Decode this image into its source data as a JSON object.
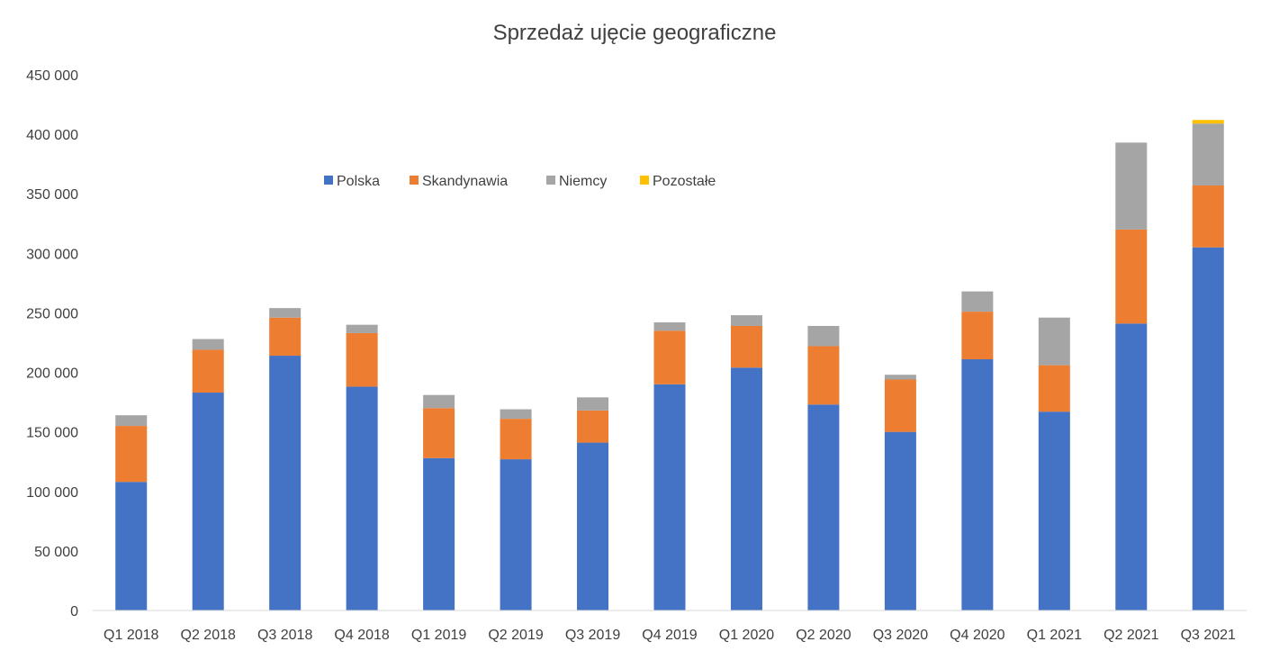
{
  "chart_data": {
    "type": "bar",
    "stacked": true,
    "title": "Sprzedaż ujęcie geograficzne",
    "xlabel": "",
    "ylabel": "",
    "ylim": [
      0,
      450000
    ],
    "y_ticks": [
      0,
      50000,
      100000,
      150000,
      200000,
      250000,
      300000,
      350000,
      400000,
      450000
    ],
    "y_tick_labels": [
      "0",
      "50 000",
      "100 000",
      "150 000",
      "200 000",
      "250 000",
      "300 000",
      "350 000",
      "400 000",
      "450 000"
    ],
    "grid": false,
    "legend_position": "top-center",
    "categories": [
      "Q1 2018",
      "Q2 2018",
      "Q3 2018",
      "Q4 2018",
      "Q1 2019",
      "Q2 2019",
      "Q3 2019",
      "Q4 2019",
      "Q1 2020",
      "Q2 2020",
      "Q3 2020",
      "Q4 2020",
      "Q1 2021",
      "Q2 2021",
      "Q3 2021"
    ],
    "series": [
      {
        "name": "Polska",
        "color": "#4472C4",
        "values": [
          108000,
          183000,
          214000,
          188000,
          128000,
          127000,
          141000,
          190000,
          204000,
          173000,
          150000,
          211000,
          167000,
          241000,
          305000
        ]
      },
      {
        "name": "Skandynawia",
        "color": "#ED7D31",
        "values": [
          47000,
          36000,
          32000,
          45000,
          42000,
          34000,
          27000,
          45000,
          35000,
          49000,
          44000,
          40000,
          39000,
          79000,
          52000
        ]
      },
      {
        "name": "Niemcy",
        "color": "#A5A5A5",
        "values": [
          9000,
          9000,
          8000,
          7000,
          11000,
          8000,
          11000,
          7000,
          9000,
          17000,
          4000,
          17000,
          40000,
          73000,
          52000
        ]
      },
      {
        "name": "Pozostałe",
        "color": "#FFC000",
        "values": [
          0,
          0,
          0,
          0,
          0,
          0,
          0,
          0,
          0,
          0,
          0,
          0,
          0,
          0,
          3000
        ]
      }
    ]
  }
}
